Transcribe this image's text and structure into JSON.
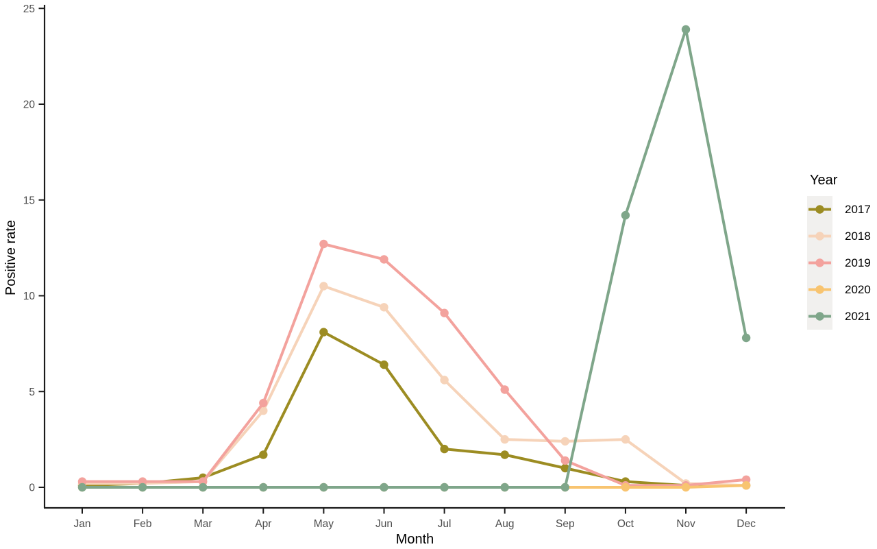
{
  "chart_data": {
    "type": "line",
    "title": "",
    "xlabel": "Month",
    "ylabel": "Positive rate",
    "x_categories": [
      "Jan",
      "Feb",
      "Mar",
      "Apr",
      "May",
      "Jun",
      "Jul",
      "Aug",
      "Sep",
      "Oct",
      "Nov",
      "Dec"
    ],
    "y_ticks": [
      0,
      5,
      10,
      15,
      20,
      25
    ],
    "ylim": [
      0,
      25
    ],
    "grid": false,
    "legend_title": "Year",
    "legend_position": "right",
    "legend_key_background": "#f1f0ee",
    "axis_color": "#1a1a1a",
    "tick_label_color": "#4d4d4d",
    "series": [
      {
        "name": "2017",
        "color": "#9c8c22",
        "values": [
          0.1,
          0.2,
          0.5,
          1.7,
          8.1,
          6.4,
          2.0,
          1.7,
          1.0,
          0.3,
          0.1,
          0.1
        ]
      },
      {
        "name": "2018",
        "color": "#f6d3b9",
        "values": [
          0.2,
          0.2,
          0.3,
          4.0,
          10.5,
          9.4,
          5.6,
          2.5,
          2.4,
          2.5,
          0.2,
          0.1
        ]
      },
      {
        "name": "2019",
        "color": "#f3a29d",
        "values": [
          0.3,
          0.3,
          0.3,
          4.4,
          12.7,
          11.9,
          9.1,
          5.1,
          1.4,
          0.1,
          0.1,
          0.4
        ]
      },
      {
        "name": "2020",
        "color": "#f8c470",
        "values": [
          0.0,
          0.0,
          0.0,
          0.0,
          0.0,
          0.0,
          0.0,
          0.0,
          0.0,
          0.0,
          0.0,
          0.1
        ]
      },
      {
        "name": "2021",
        "color": "#7fa68a",
        "values": [
          0.0,
          0.0,
          0.0,
          0.0,
          0.0,
          0.0,
          0.0,
          0.0,
          0.0,
          14.2,
          23.9,
          7.8
        ]
      }
    ]
  }
}
